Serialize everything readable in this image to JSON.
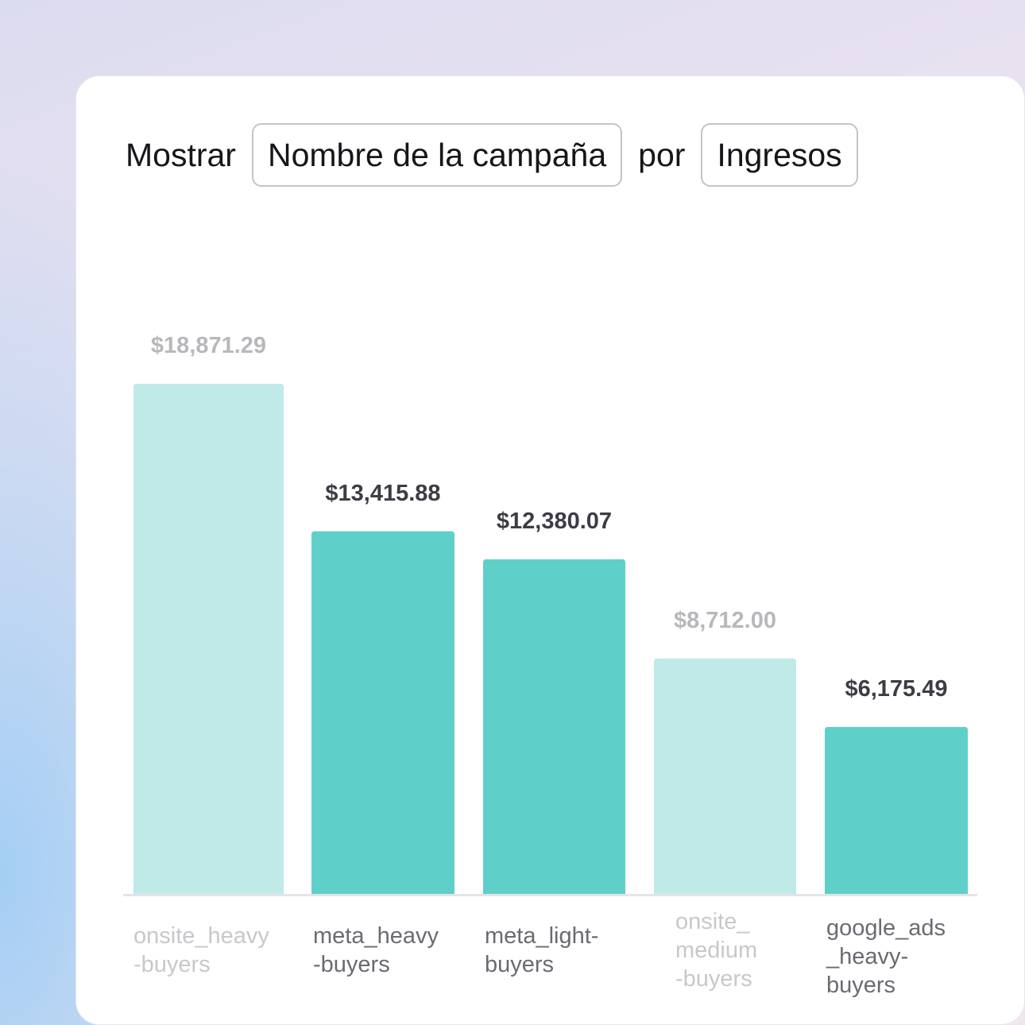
{
  "header": {
    "prefix": "Mostrar",
    "dimension": "Nombre de la campaña",
    "connector": "por",
    "metric": "Ingresos"
  },
  "colors": {
    "active_bar": "#5fd0c9",
    "inactive_bar": "#bfeae8",
    "active_label": "#3c3d44",
    "inactive_label": "#b8b8bc",
    "active_category": "#6a6b72",
    "inactive_category": "#c8c8cc",
    "axis": "#e4e4e6"
  },
  "chart_data": {
    "type": "bar",
    "categories": [
      "onsite_heavy\n-buyers",
      "meta_heavy\n-buyers",
      "meta_light-\nbuyers",
      "onsite_\nmedium\n-buyers",
      "google_ads\n_heavy-\nbuyers"
    ],
    "values": [
      18871.29,
      13415.88,
      12380.07,
      8712.0,
      6175.49
    ],
    "value_labels": [
      "$18,871.29",
      "$13,415.88",
      "$12,380.07",
      "$8,712.00",
      "$6,175.49"
    ],
    "highlighted": [
      false,
      true,
      true,
      false,
      true
    ],
    "ylim": [
      0,
      18871.29
    ],
    "grid": false
  }
}
